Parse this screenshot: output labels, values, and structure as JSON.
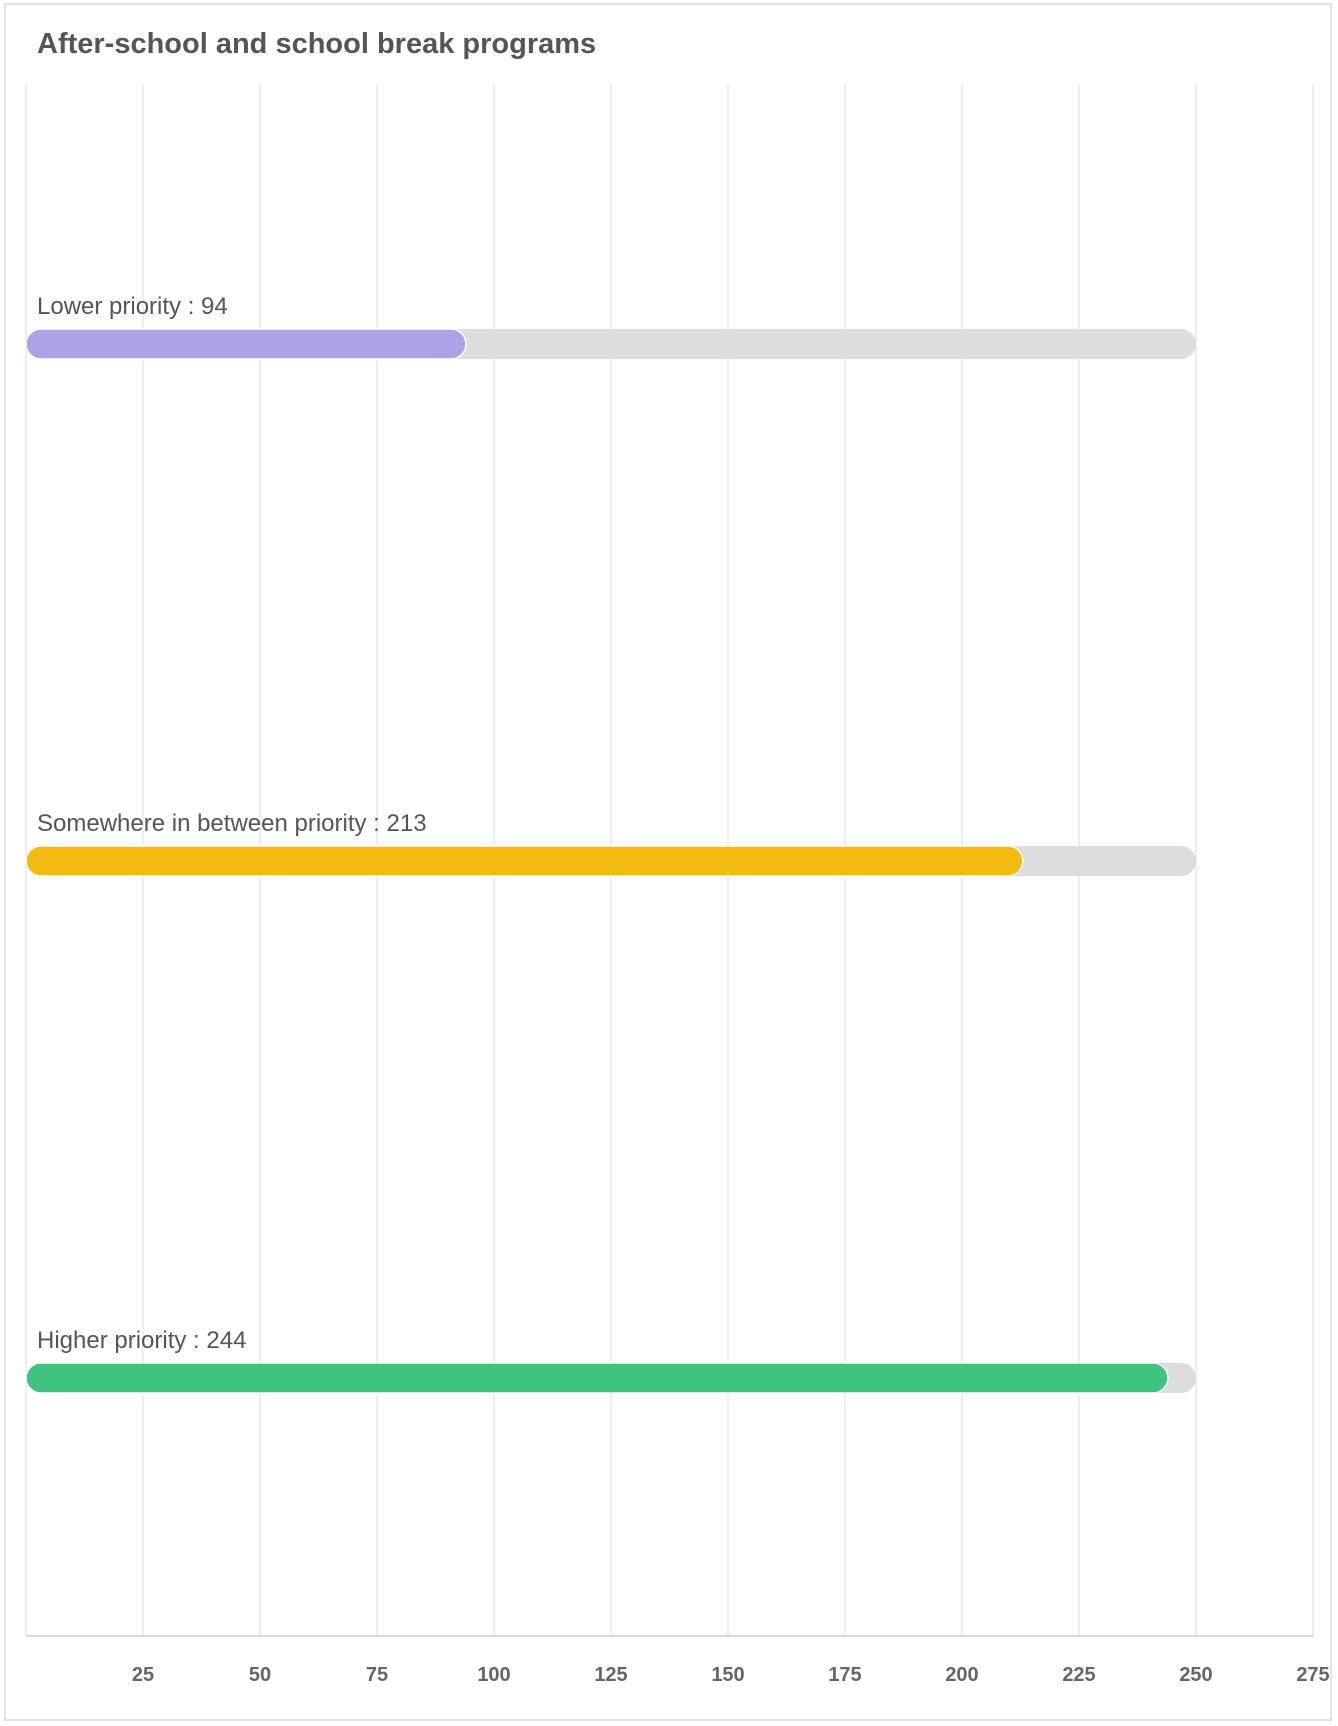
{
  "chart_data": {
    "type": "bar",
    "orientation": "horizontal",
    "title": "After-school and school break programs",
    "categories": [
      "Lower priority",
      "Somewhere in between priority",
      "Higher priority"
    ],
    "values": [
      94,
      213,
      244
    ],
    "label_separator": " : ",
    "track_max": 250,
    "xlim": [
      0,
      275
    ],
    "x_ticks": [
      25,
      50,
      75,
      100,
      125,
      150,
      175,
      200,
      225,
      250,
      275
    ],
    "grid": true,
    "colors": {
      "bars": [
        "#aca3e6",
        "#f3bb12",
        "#3ec47f"
      ],
      "track": "#dddddd",
      "grid": "#e3e3e3",
      "axis": "#cccccc"
    }
  }
}
